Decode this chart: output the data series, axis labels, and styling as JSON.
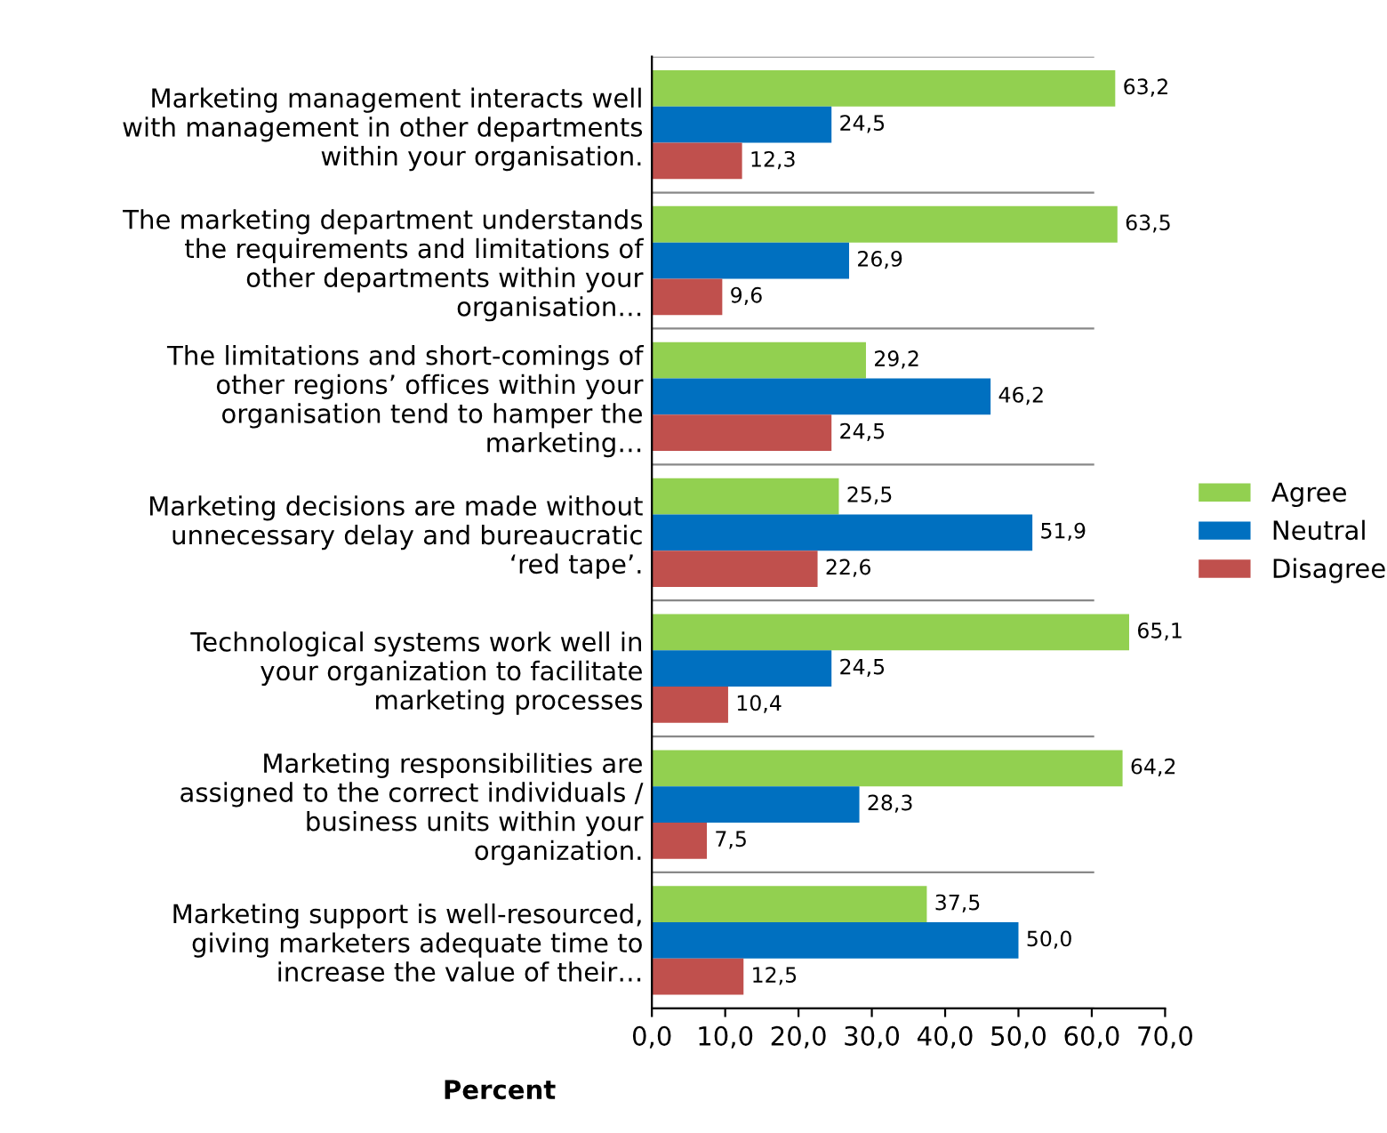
{
  "chart_data": {
    "type": "bar",
    "orientation": "horizontal",
    "xlabel": "Percent",
    "categories": [
      "Marketing management interacts well with management in other departments within your organisation.",
      "The marketing department understands the requirements and limitations of other departments within your organisation…",
      "The limitations and short-comings of other regions’ offices within your organisation tend to hamper the marketing…",
      "Marketing decisions are made without unnecessary delay and bureaucratic ‘red tape’.",
      "Technological systems work well in your organization to facilitate marketing processes",
      "Marketing responsibilities are assigned to the correct individuals / business units within your organization.",
      "Marketing support is well-resourced, giving marketers adequate time to increase the value of their…"
    ],
    "series": [
      {
        "name": "Agree",
        "color": "#92d050",
        "values": [
          63.2,
          63.5,
          29.2,
          25.5,
          65.1,
          64.2,
          37.5
        ],
        "value_labels": [
          "63,2",
          "63,5",
          "29,2",
          "25,5",
          "65,1",
          "64,2",
          "37,5"
        ]
      },
      {
        "name": "Neutral",
        "color": "#0070c0",
        "values": [
          24.5,
          26.9,
          46.2,
          51.9,
          24.5,
          28.3,
          50.0
        ],
        "value_labels": [
          "24,5",
          "26,9",
          "46,2",
          "51,9",
          "24,5",
          "28,3",
          "50,0"
        ]
      },
      {
        "name": "Disagree",
        "color": "#c0504d",
        "values": [
          12.3,
          9.6,
          24.5,
          22.6,
          10.4,
          7.5,
          12.5
        ],
        "value_labels": [
          "12,3",
          "9,6",
          "24,5",
          "22,6",
          "10,4",
          "7,5",
          "12,5"
        ]
      }
    ],
    "xlim": [
      0,
      70
    ],
    "xticks": [
      {
        "value": 0,
        "label": "0,0"
      },
      {
        "value": 10,
        "label": "10,0"
      },
      {
        "value": 20,
        "label": "20,0"
      },
      {
        "value": 30,
        "label": "30,0"
      },
      {
        "value": 40,
        "label": "40,0"
      },
      {
        "value": 50,
        "label": "50,0"
      },
      {
        "value": 60,
        "label": "60,0"
      },
      {
        "value": 70,
        "label": "70,0"
      }
    ],
    "grid": false,
    "legend": "right"
  }
}
